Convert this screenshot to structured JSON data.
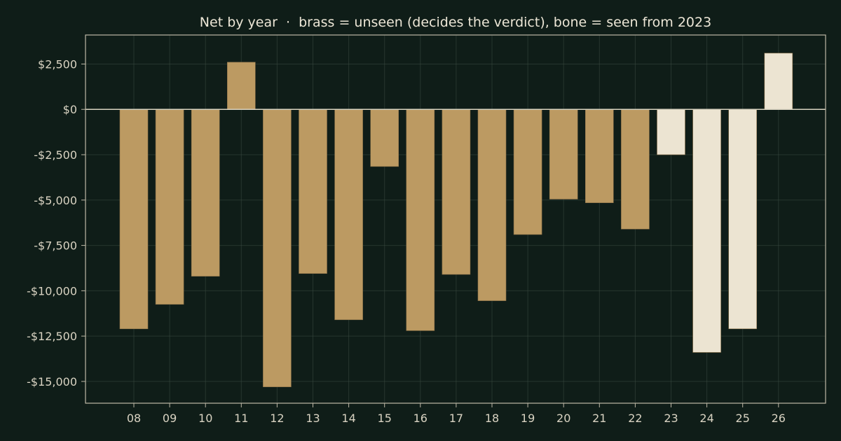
{
  "chart_data": {
    "type": "bar",
    "title": "Net by year  ·  brass = unseen (decides the verdict), bone = seen from 2023",
    "xlabel": "",
    "ylabel": "",
    "categories": [
      "08",
      "09",
      "10",
      "11",
      "12",
      "13",
      "14",
      "15",
      "16",
      "17",
      "18",
      "19",
      "20",
      "21",
      "22",
      "23",
      "24",
      "25",
      "26"
    ],
    "values": [
      -12100,
      -10750,
      -9200,
      2600,
      -15300,
      -9050,
      -11600,
      -3150,
      -12200,
      -9100,
      -10550,
      -6900,
      -4950,
      -5150,
      -6600,
      -2500,
      -13400,
      -12100,
      3100
    ],
    "groups": [
      "unseen",
      "unseen",
      "unseen",
      "unseen",
      "unseen",
      "unseen",
      "unseen",
      "unseen",
      "unseen",
      "unseen",
      "unseen",
      "unseen",
      "unseen",
      "unseen",
      "unseen",
      "seen",
      "seen",
      "seen",
      "seen"
    ],
    "colors": {
      "unseen": "#bc9a62",
      "seen": "#ece4d2"
    },
    "ylim": [
      -16200,
      4100
    ],
    "yticks": [
      2500,
      0,
      -2500,
      -5000,
      -7500,
      -10000,
      -12500,
      -15000
    ],
    "ytick_labels": [
      "$2,500",
      "$0",
      "-$2,500",
      "-$5,000",
      "-$7,500",
      "-$10,000",
      "-$12,500",
      "-$15,000"
    ],
    "grid": true,
    "legend": "none"
  }
}
